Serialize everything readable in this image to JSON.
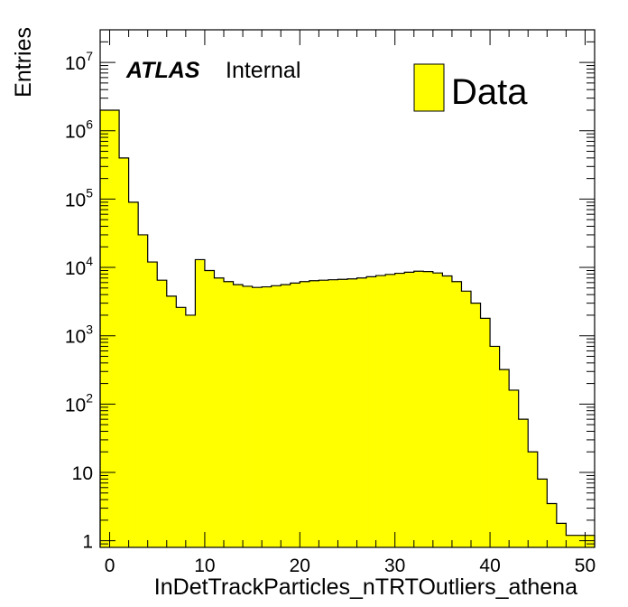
{
  "chart_data": {
    "type": "bar",
    "histogram": true,
    "log_y": true,
    "xlabel": "InDetTrackParticles_nTRTOutliers_athena",
    "ylabel": "Entries",
    "xlim": [
      -1,
      51
    ],
    "ylim": [
      0.8,
      30000000
    ],
    "x_ticks": [
      {
        "v": 0,
        "label": "0"
      },
      {
        "v": 10,
        "label": "10"
      },
      {
        "v": 20,
        "label": "20"
      },
      {
        "v": 30,
        "label": "30"
      },
      {
        "v": 40,
        "label": "40"
      },
      {
        "v": 50,
        "label": "50"
      }
    ],
    "y_ticks": [
      {
        "v": 1,
        "base": "1",
        "exp": ""
      },
      {
        "v": 10,
        "base": "10",
        "exp": ""
      },
      {
        "v": 100,
        "base": "10",
        "exp": "2"
      },
      {
        "v": 1000,
        "base": "10",
        "exp": "3"
      },
      {
        "v": 10000,
        "base": "10",
        "exp": "4"
      },
      {
        "v": 100000,
        "base": "10",
        "exp": "5"
      },
      {
        "v": 1000000,
        "base": "10",
        "exp": "6"
      },
      {
        "v": 10000000,
        "base": "10",
        "exp": "7"
      }
    ],
    "bin_edges_start": -1,
    "bin_width": 1,
    "series": [
      {
        "name": "Data",
        "color": "#ffff00",
        "values": [
          2000000,
          2000000,
          400000,
          90000,
          30000,
          12000,
          6500,
          3800,
          2600,
          2000,
          13000,
          9000,
          7000,
          6200,
          5600,
          5300,
          5100,
          5200,
          5400,
          5600,
          5900,
          6200,
          6400,
          6500,
          6600,
          6700,
          6800,
          7000,
          7300,
          7600,
          7900,
          8200,
          8500,
          8800,
          8700,
          8300,
          7500,
          6200,
          4500,
          3000,
          1800,
          700,
          320,
          160,
          60,
          20,
          8,
          3.5,
          1.8,
          1.2,
          1.2,
          1.2
        ]
      }
    ]
  },
  "labels": {
    "atlas": "ATLAS",
    "internal": "Internal"
  },
  "legend": {
    "label": "Data",
    "position": "top-right"
  }
}
